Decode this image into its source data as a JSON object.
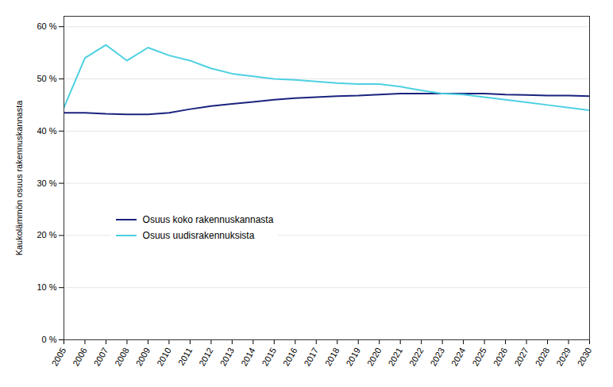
{
  "chart_data": {
    "type": "line",
    "x": [
      2005,
      2006,
      2007,
      2008,
      2009,
      2010,
      2011,
      2012,
      2013,
      2014,
      2015,
      2016,
      2017,
      2018,
      2019,
      2020,
      2021,
      2022,
      2023,
      2024,
      2025,
      2026,
      2027,
      2028,
      2029,
      2030
    ],
    "series": [
      {
        "name": "Osuus koko rakennuskannasta",
        "color": "#1a237e",
        "values": [
          43.5,
          43.5,
          43.3,
          43.2,
          43.2,
          43.5,
          44.2,
          44.8,
          45.2,
          45.6,
          46.0,
          46.3,
          46.5,
          46.7,
          46.8,
          47.0,
          47.2,
          47.2,
          47.2,
          47.2,
          47.2,
          47.0,
          46.9,
          46.8,
          46.8,
          46.7
        ]
      },
      {
        "name": "Osuus uudisrakennuksista",
        "color": "#4dd0e1",
        "values": [
          44.5,
          54.0,
          56.5,
          53.5,
          56.0,
          54.5,
          53.5,
          52.0,
          51.0,
          50.5,
          50.0,
          49.8,
          49.5,
          49.2,
          49.0,
          49.0,
          48.5,
          47.8,
          47.2,
          47.0,
          46.5,
          46.0,
          45.5,
          45.0,
          44.5,
          44.0
        ]
      }
    ],
    "ylabel": "Kaukolämmön osuus rakennuskannasta",
    "xlim": [
      2005,
      2030
    ],
    "xticks": [
      2005,
      2006,
      2007,
      2008,
      2009,
      2010,
      2011,
      2012,
      2013,
      2014,
      2015,
      2016,
      2017,
      2018,
      2019,
      2020,
      2021,
      2022,
      2023,
      2024,
      2025,
      2026,
      2027,
      2028,
      2029,
      2030
    ],
    "ylim": [
      0,
      62
    ],
    "yticks": [
      {
        "value": 0,
        "label": "0 %"
      },
      {
        "value": 10,
        "label": "10 %"
      },
      {
        "value": 20,
        "label": "20 %"
      },
      {
        "value": 30,
        "label": "30 %"
      },
      {
        "value": 40,
        "label": "40 %"
      },
      {
        "value": 50,
        "label": "50 %"
      },
      {
        "value": 60,
        "label": "60 %"
      }
    ],
    "grid": true,
    "legend": "lower left"
  }
}
